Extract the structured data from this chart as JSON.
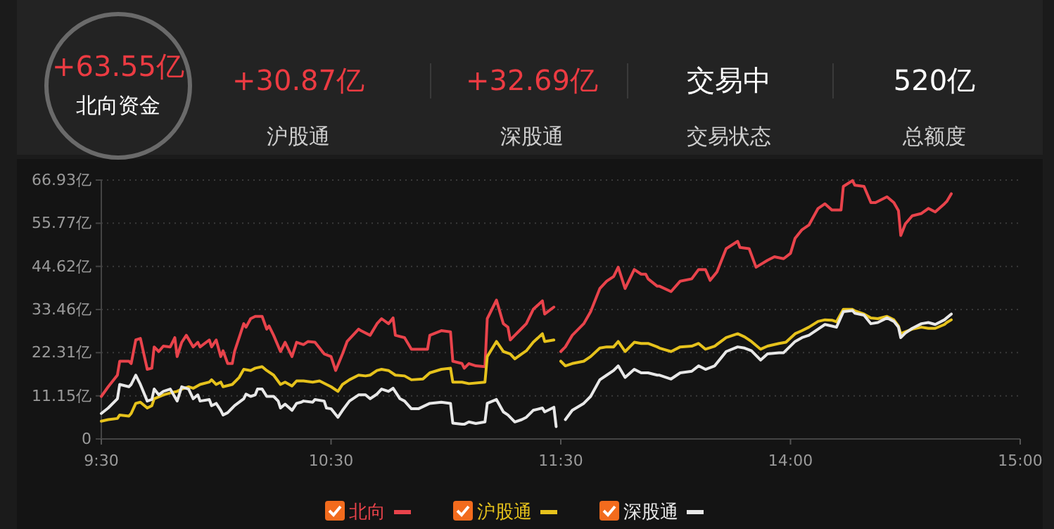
{
  "chart_data": [
    {
      "type": "line",
      "annotations": [
        "+63.55亿",
        "北向资金",
        "+30.87亿",
        "沪股通",
        "+32.69亿",
        "深股通",
        "交易中",
        "交易状态",
        "520亿",
        "总额度"
      ],
      "xlim": [
        9.5,
        11.5
      ],
      "xticks": [
        {
          "value": 9.5,
          "label": "9:30"
        },
        {
          "value": 10.5,
          "label": "10:30"
        },
        {
          "value": 11.5,
          "label": "11:30"
        }
      ],
      "ylim": [
        0,
        66.93
      ],
      "yticks": [
        0,
        {
          "value": 11.15,
          "label": "11.15亿"
        },
        {
          "value": 22.31,
          "label": "22.31亿"
        },
        {
          "value": 33.46,
          "label": "33.46亿"
        },
        {
          "value": 44.62,
          "label": "44.62亿"
        },
        {
          "value": 55.77,
          "label": "55.77亿"
        },
        {
          "value": 66.93,
          "label": "66.93亿"
        }
      ],
      "grid": "y",
      "legend": "bottom",
      "series": [
        {
          "name": "北向",
          "color": "#e8434b",
          "x": [
            9.5,
            9.53,
            9.57,
            9.58,
            9.62,
            9.63,
            9.65,
            9.67,
            9.7,
            9.72,
            9.73,
            9.75,
            9.77,
            9.8,
            9.82,
            9.83,
            9.85,
            9.87,
            9.9,
            9.92,
            9.93,
            9.97,
            9.98,
            10,
            10.02,
            10.03,
            10.05,
            10.07,
            10.08,
            10.12,
            10.13,
            10.15,
            10.17,
            10.2,
            10.22,
            10.23,
            10.25,
            10.28,
            10.3,
            10.33,
            10.35,
            10.38,
            10.4,
            10.43,
            10.47,
            10.5,
            10.52,
            10.55,
            10.57,
            10.62,
            10.63,
            10.67,
            10.7,
            10.72,
            10.75,
            10.77,
            10.78,
            10.82,
            10.85,
            10.92,
            10.93,
            10.98,
            11.02,
            11.03,
            11.07,
            11.08,
            11.1,
            11.13,
            11.17,
            11.18,
            11.22,
            11.25,
            11.27,
            11.28,
            11.3,
            11.33,
            11.35,
            11.38,
            11.42,
            11.43,
            11.47
          ],
          "values": [
            11.0,
            13.5,
            16.5,
            20.1,
            20.1,
            19.5,
            25.6,
            26.0,
            18.0,
            18.3,
            23.8,
            22.6,
            24.0,
            23.8,
            26.2,
            21.3,
            25.0,
            26.8,
            23.8,
            25.0,
            23.8,
            25.6,
            23.8,
            25.6,
            21.3,
            22.8,
            19.5,
            19.5,
            22.6,
            29.8,
            28.9,
            31.1,
            31.7,
            31.7,
            28.4,
            29.2,
            26.8,
            22.6,
            25.0,
            21.3,
            25.0,
            24.4,
            25.2,
            25.0,
            22.0,
            21.3,
            17.7,
            22.0,
            25.2,
            28.4,
            28.0,
            26.8,
            29.8,
            31.1,
            29.8,
            31.3,
            26.8,
            26.2,
            23.2,
            23.2,
            26.8,
            28.0,
            27.7,
            20.1,
            19.5,
            18.3,
            19.5,
            18.9,
            18.7,
            31.1,
            35.9,
            29.8,
            28.9,
            25.6,
            26.8,
            28.6,
            29.8,
            33.5,
            35.7,
            32.3,
            34.1
          ]
        },
        {
          "name": "沪股通",
          "color": "#e6c21c",
          "x": [
            9.5,
            9.53,
            9.57,
            9.58,
            9.62,
            9.63,
            9.65,
            9.67,
            9.7,
            9.72,
            9.73,
            9.77,
            9.8,
            9.83,
            9.85,
            9.88,
            9.9,
            9.93,
            9.97,
            9.98,
            10,
            10.02,
            10.03,
            10.07,
            10.1,
            10.12,
            10.15,
            10.17,
            10.2,
            10.22,
            10.25,
            10.28,
            10.3,
            10.33,
            10.35,
            10.38,
            10.42,
            10.45,
            10.48,
            10.5,
            10.53,
            10.55,
            10.58,
            10.62,
            10.65,
            10.67,
            10.7,
            10.72,
            10.75,
            10.78,
            10.82,
            10.85,
            10.9,
            10.93,
            10.98,
            11.02,
            11.03,
            11.07,
            11.1,
            11.17,
            11.18,
            11.22,
            11.25,
            11.28,
            11.3,
            11.33,
            11.35,
            11.38,
            11.42,
            11.43,
            11.47
          ],
          "values": [
            4.6,
            5.0,
            5.3,
            6.2,
            5.9,
            6.6,
            9.2,
            9.5,
            8.0,
            8.6,
            10.4,
            11.4,
            11.9,
            12.3,
            12.9,
            13.5,
            13.1,
            14.1,
            14.7,
            15.3,
            14.1,
            14.7,
            13.5,
            14.1,
            15.9,
            18.0,
            17.7,
            18.3,
            18.7,
            17.7,
            16.5,
            14.1,
            14.7,
            13.7,
            15.0,
            15.0,
            14.7,
            15.0,
            14.1,
            13.5,
            12.3,
            14.1,
            15.3,
            16.5,
            16.3,
            16.5,
            17.7,
            18.0,
            17.7,
            16.5,
            16.3,
            15.3,
            15.5,
            17.1,
            18.0,
            18.3,
            14.7,
            14.7,
            14.3,
            14.7,
            21.3,
            25.2,
            22.6,
            22.0,
            20.7,
            22.0,
            22.8,
            25.0,
            27.2,
            25.2,
            25.6
          ]
        },
        {
          "name": "深股通",
          "color": "#e8e8e8",
          "x": [
            9.5,
            9.53,
            9.57,
            9.58,
            9.62,
            9.63,
            9.65,
            9.67,
            9.7,
            9.72,
            9.73,
            9.75,
            9.77,
            9.8,
            9.83,
            9.85,
            9.88,
            9.9,
            9.92,
            9.93,
            9.97,
            9.98,
            10,
            10.02,
            10.03,
            10.05,
            10.07,
            10.08,
            10.12,
            10.13,
            10.15,
            10.17,
            10.18,
            10.2,
            10.22,
            10.25,
            10.27,
            10.28,
            10.3,
            10.33,
            10.35,
            10.37,
            10.38,
            10.42,
            10.43,
            10.47,
            10.48,
            10.5,
            10.53,
            10.55,
            10.58,
            10.62,
            10.65,
            10.67,
            10.7,
            10.72,
            10.75,
            10.77,
            10.8,
            10.82,
            10.85,
            10.88,
            10.93,
            10.98,
            11.02,
            11.03,
            11.07,
            11.08,
            11.1,
            11.13,
            11.17,
            11.18,
            11.22,
            11.25,
            11.27,
            11.3,
            11.33,
            11.35,
            11.38,
            11.42,
            11.43,
            11.47,
            11.48
          ],
          "values": [
            6.6,
            8.0,
            10.4,
            14.1,
            13.5,
            14.1,
            16.5,
            14.1,
            9.8,
            10.2,
            12.9,
            11.4,
            12.3,
            12.9,
            9.8,
            13.5,
            12.9,
            10.4,
            11.4,
            9.8,
            10.2,
            8.6,
            9.2,
            7.4,
            6.2,
            6.8,
            8.0,
            8.6,
            10.4,
            11.6,
            11.0,
            11.4,
            12.9,
            12.9,
            11.0,
            11.0,
            9.8,
            8.0,
            9.0,
            7.4,
            9.2,
            9.5,
            9.8,
            9.5,
            10.2,
            9.8,
            8.0,
            7.8,
            5.6,
            7.4,
            9.8,
            11.4,
            11.4,
            10.4,
            11.6,
            12.9,
            12.3,
            13.1,
            10.4,
            9.8,
            7.8,
            7.8,
            9.2,
            9.5,
            9.2,
            4.1,
            3.8,
            3.8,
            4.4,
            4.0,
            4.4,
            9.2,
            10.2,
            7.0,
            6.2,
            4.4,
            5.0,
            5.6,
            7.4,
            8.0,
            7.0,
            8.2,
            3.2
          ]
        }
      ]
    },
    {
      "type": "line",
      "xlim": [
        13,
        15
      ],
      "xticks": [
        {
          "value": 14,
          "label": "14:00"
        },
        {
          "value": 15,
          "label": "15:00"
        }
      ],
      "ylim": [
        0,
        66.93
      ],
      "yticks": [
        0,
        11.15,
        22.31,
        33.46,
        44.62,
        55.77,
        66.93
      ],
      "tick_labels": "x",
      "grid": "y",
      "series": [
        {
          "color": "#e8434b",
          "x": [
            13,
            13.02,
            13.05,
            13.1,
            13.13,
            13.17,
            13.2,
            13.23,
            13.25,
            13.28,
            13.32,
            13.35,
            13.37,
            13.38,
            13.42,
            13.43,
            13.48,
            13.52,
            13.57,
            13.6,
            13.63,
            13.65,
            13.68,
            13.72,
            13.77,
            13.78,
            13.82,
            13.85,
            13.9,
            13.93,
            13.97,
            14,
            14.02,
            14.05,
            14.08,
            14.12,
            14.15,
            14.18,
            14.22,
            14.23,
            14.27,
            14.28,
            14.32,
            14.35,
            14.37,
            14.42,
            14.45,
            14.47,
            14.48,
            14.5,
            14.53,
            14.57,
            14.6,
            14.63,
            14.67,
            14.68,
            14.7
          ],
          "values": [
            22.6,
            23.8,
            26.8,
            29.8,
            32.9,
            38.9,
            40.8,
            42.0,
            44.4,
            38.9,
            43.8,
            42.6,
            42.6,
            41.4,
            39.5,
            39.5,
            38.1,
            40.8,
            41.4,
            43.8,
            43.8,
            41.0,
            43.2,
            49.2,
            51.1,
            49.5,
            49.2,
            44.4,
            46.2,
            47.1,
            46.6,
            48.0,
            51.9,
            54.1,
            55.3,
            59.6,
            60.8,
            59.2,
            59.2,
            65.3,
            66.8,
            65.6,
            65.3,
            61.1,
            61.1,
            62.6,
            61.1,
            59.0,
            52.6,
            55.6,
            57.7,
            58.3,
            59.6,
            58.7,
            60.8,
            61.4,
            63.4
          ]
        },
        {
          "color": "#e6c21c",
          "x": [
            13,
            13.02,
            13.05,
            13.1,
            13.13,
            13.17,
            13.2,
            13.23,
            13.25,
            13.28,
            13.32,
            13.35,
            13.38,
            13.42,
            13.43,
            13.48,
            13.52,
            13.57,
            13.6,
            13.63,
            13.67,
            13.72,
            13.77,
            13.8,
            13.83,
            13.87,
            13.9,
            13.95,
            13.98,
            14.02,
            14.05,
            14.08,
            14.12,
            14.15,
            14.18,
            14.2,
            14.23,
            14.27,
            14.28,
            14.32,
            14.35,
            14.38,
            14.42,
            14.45,
            14.47,
            14.48,
            14.5,
            14.53,
            14.57,
            14.6,
            14.63,
            14.67,
            14.68,
            14.7
          ],
          "values": [
            20.1,
            18.9,
            19.5,
            20.1,
            21.3,
            23.5,
            23.8,
            23.8,
            25.2,
            22.6,
            25.0,
            24.7,
            24.7,
            23.8,
            23.5,
            22.6,
            23.8,
            24.0,
            24.7,
            23.2,
            24.0,
            26.2,
            27.2,
            26.4,
            25.2,
            23.2,
            24.0,
            24.7,
            25.0,
            27.2,
            28.0,
            28.9,
            30.4,
            30.8,
            30.7,
            30.3,
            33.5,
            33.5,
            33.1,
            32.3,
            31.3,
            31.1,
            31.7,
            30.8,
            29.2,
            27.2,
            27.7,
            28.4,
            28.9,
            28.6,
            28.6,
            29.6,
            30.1,
            30.8
          ]
        },
        {
          "color": "#e8e8e8",
          "x": [
            13.02,
            13.05,
            13.1,
            13.13,
            13.17,
            13.2,
            13.23,
            13.25,
            13.28,
            13.32,
            13.35,
            13.38,
            13.42,
            13.43,
            13.48,
            13.52,
            13.57,
            13.6,
            13.63,
            13.67,
            13.72,
            13.77,
            13.8,
            13.83,
            13.87,
            13.9,
            13.95,
            13.97,
            14.02,
            14.05,
            14.08,
            14.12,
            14.15,
            14.18,
            14.2,
            14.23,
            14.27,
            14.28,
            14.32,
            14.35,
            14.38,
            14.42,
            14.45,
            14.47,
            14.48,
            14.5,
            14.53,
            14.57,
            14.6,
            14.63,
            14.67,
            14.68,
            14.7
          ],
          "values": [
            5.0,
            7.4,
            9.2,
            11.0,
            15.3,
            16.5,
            17.7,
            18.9,
            15.9,
            18.0,
            17.1,
            17.1,
            16.5,
            16.5,
            15.5,
            17.1,
            17.5,
            18.9,
            18.0,
            18.9,
            22.6,
            23.8,
            23.5,
            22.8,
            20.4,
            22.0,
            22.3,
            22.3,
            25.2,
            26.2,
            26.8,
            28.4,
            29.6,
            29.2,
            28.9,
            32.9,
            33.2,
            32.5,
            32.0,
            29.8,
            30.1,
            31.3,
            30.4,
            28.9,
            26.2,
            27.4,
            28.6,
            29.8,
            30.1,
            29.6,
            30.8,
            31.3,
            32.3
          ]
        }
      ]
    }
  ]
}
